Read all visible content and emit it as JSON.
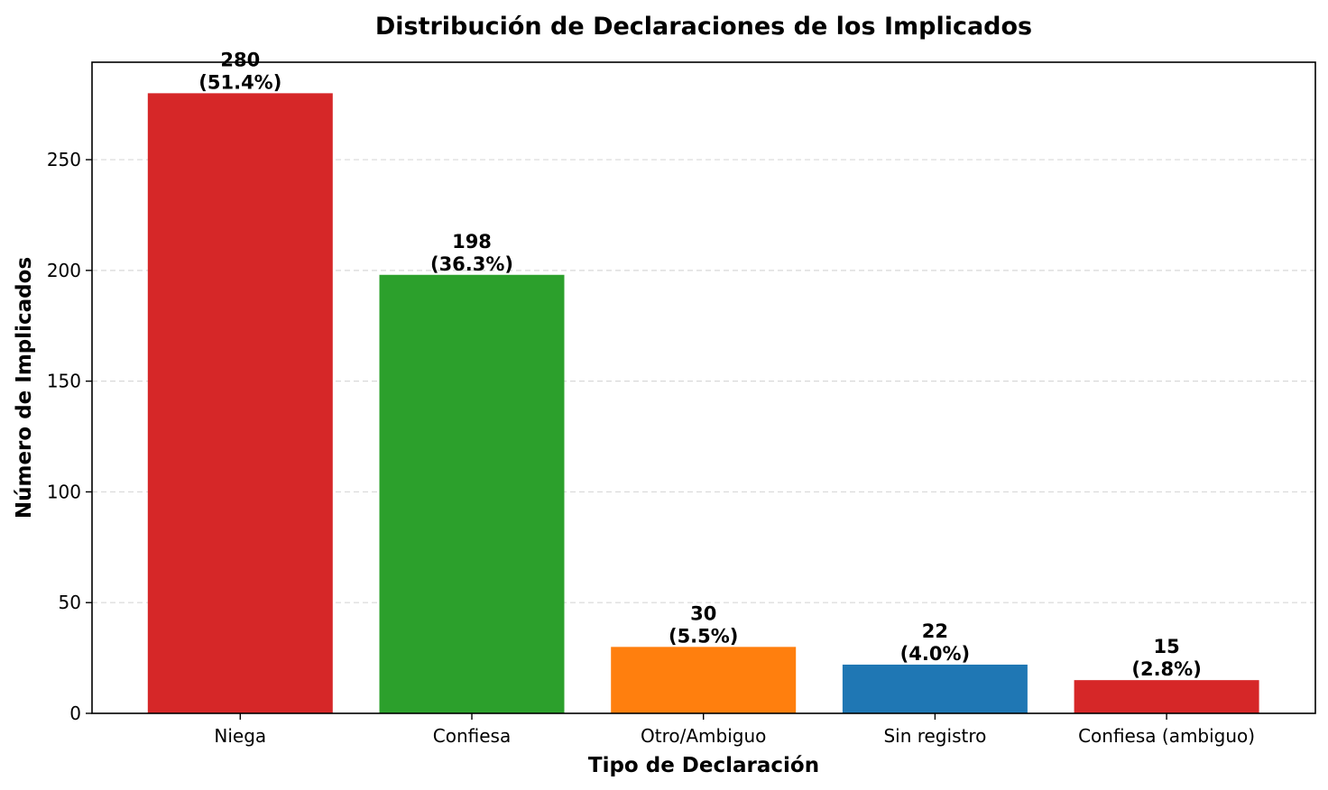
{
  "chart_data": {
    "type": "bar",
    "title": "Distribución de Declaraciones de los Implicados",
    "xlabel": "Tipo de Declaración",
    "ylabel": "Número de Implicados",
    "categories": [
      "Niega",
      "Confiesa",
      "Otro/Ambiguo",
      "Sin registro",
      "Confiesa (ambiguo)"
    ],
    "values": [
      280,
      198,
      30,
      22,
      15
    ],
    "percent_labels": [
      "(51.4%)",
      "(36.3%)",
      "(5.5%)",
      "(4.0%)",
      "(2.8%)"
    ],
    "bar_colors": [
      "#d62728",
      "#2ca02c",
      "#ff7f0e",
      "#1f77b4",
      "#d62728"
    ],
    "ylim": [
      0,
      294
    ],
    "yticks": [
      0,
      50,
      100,
      150,
      200,
      250
    ],
    "grid": true,
    "grid_axis": "y",
    "legend": "none"
  }
}
